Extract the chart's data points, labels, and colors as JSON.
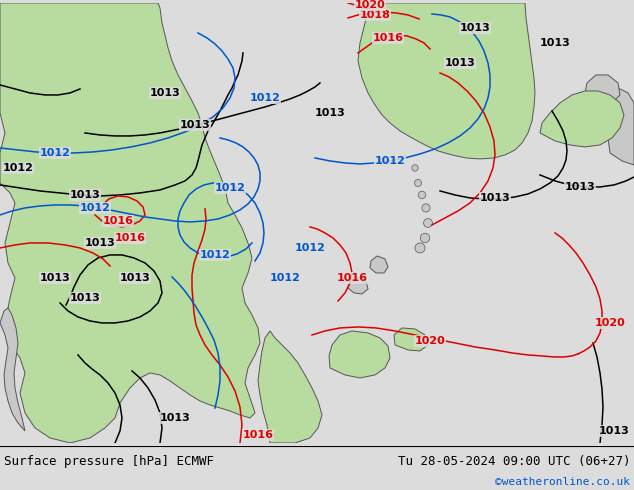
{
  "title_left": "Surface pressure [hPa] ECMWF",
  "title_right": "Tu 28-05-2024 09:00 UTC (06+27)",
  "copyright": "©weatheronline.co.uk",
  "bg_color": "#dcdcdc",
  "ocean_color": "#dcdcdc",
  "land_green": "#b8dca0",
  "land_gray": "#c8c8c8",
  "isobar_black": "#000000",
  "isobar_red": "#dd0000",
  "isobar_blue": "#0055cc",
  "label_fontsize": 8,
  "title_fontsize": 9,
  "copyright_color": "#0055cc"
}
